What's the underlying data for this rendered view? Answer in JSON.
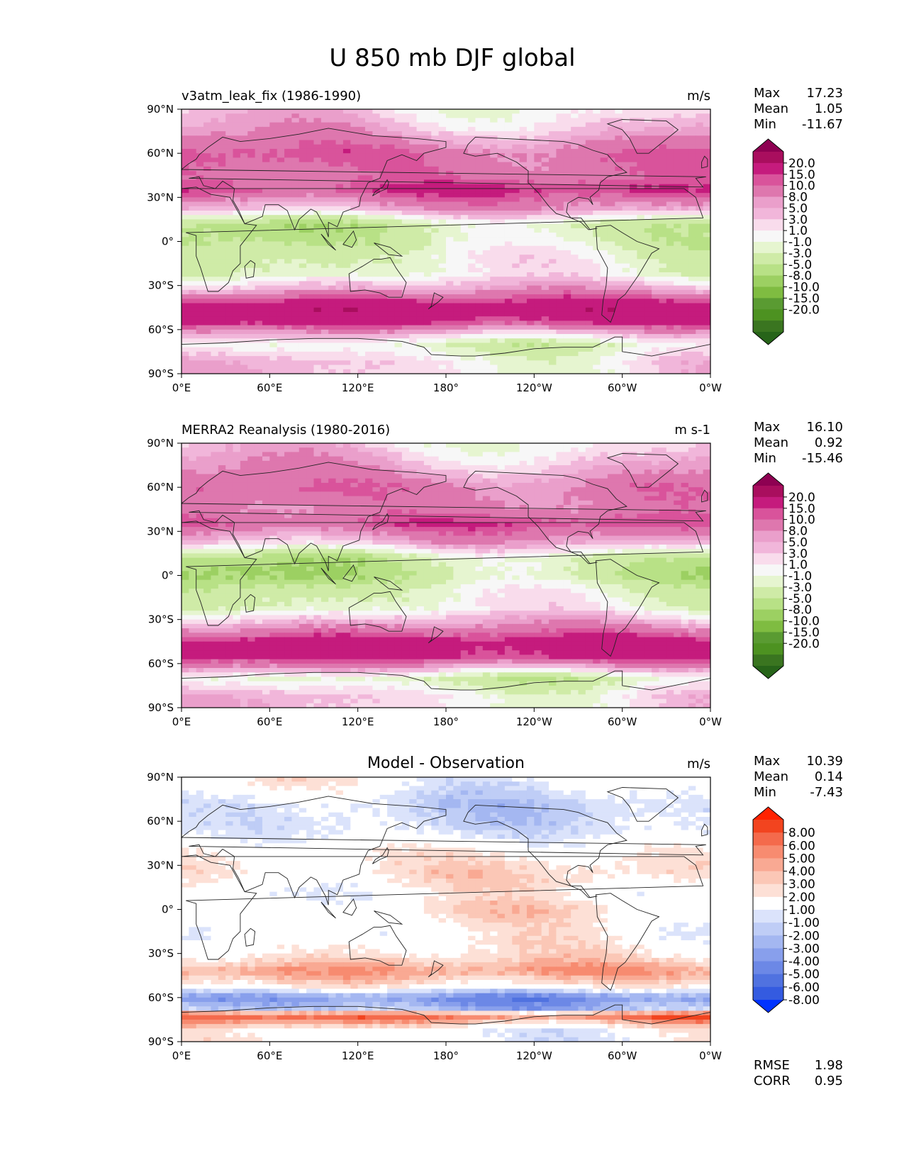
{
  "figure": {
    "title": "U 850 mb DJF global"
  },
  "chart_data": [
    {
      "type": "heatmap",
      "title": "v3atm_leak_fix (1986-1990)",
      "units": "m/s",
      "stats": [
        {
          "label": "Max",
          "value": "17.23"
        },
        {
          "label": "Mean",
          "value": "1.05"
        },
        {
          "label": "Min",
          "value": "-11.67"
        }
      ],
      "xticks": [
        "0°E",
        "60°E",
        "120°E",
        "180°",
        "120°W",
        "60°W",
        "0°W"
      ],
      "yticks": [
        "90°N",
        "60°N",
        "30°N",
        "0°",
        "30°S",
        "60°S",
        "90°S"
      ],
      "xlim": [
        0,
        360
      ],
      "ylim": [
        -90,
        90
      ],
      "colorbar": {
        "labels": [
          "20.0",
          "15.0",
          "10.0",
          "8.0",
          "5.0",
          "3.0",
          "1.0",
          "-1.0",
          "-3.0",
          "-5.0",
          "-8.0",
          "-10.0",
          "-15.0",
          "-20.0"
        ],
        "colors": [
          "#8e0152",
          "#a90e5e",
          "#c51b7d",
          "#d9539b",
          "#de77ae",
          "#ea9fcb",
          "#f1b6da",
          "#f9dcec",
          "#f7f7f7",
          "#e6f5d0",
          "#cfeba7",
          "#b8e186",
          "#9cd062",
          "#7fbc41",
          "#5a9b32",
          "#4d9221",
          "#3a7520",
          "#276419"
        ]
      },
      "bands": [
        {
          "lat": 88,
          "value": 0
        },
        {
          "lat": 75,
          "value": 3
        },
        {
          "lat": 60,
          "value": 8
        },
        {
          "lat": 45,
          "value": 7
        },
        {
          "lat": 35,
          "value": 10
        },
        {
          "lat": 22,
          "value": 3
        },
        {
          "lat": 12,
          "value": -7
        },
        {
          "lat": 0,
          "value": -6
        },
        {
          "lat": -10,
          "value": -4
        },
        {
          "lat": -22,
          "value": -3
        },
        {
          "lat": -32,
          "value": 3
        },
        {
          "lat": -45,
          "value": 14
        },
        {
          "lat": -55,
          "value": 11
        },
        {
          "lat": -63,
          "value": 2
        },
        {
          "lat": -70,
          "value": -4
        },
        {
          "lat": -82,
          "value": 0
        }
      ]
    },
    {
      "type": "heatmap",
      "title": "MERRA2 Reanalysis (1980-2016)",
      "units": "m s-1",
      "stats": [
        {
          "label": "Max",
          "value": "16.10"
        },
        {
          "label": "Mean",
          "value": "0.92"
        },
        {
          "label": "Min",
          "value": "-15.46"
        }
      ],
      "xticks": [
        "0°E",
        "60°E",
        "120°E",
        "180°",
        "120°W",
        "60°W",
        "0°W"
      ],
      "yticks": [
        "90°N",
        "60°N",
        "30°N",
        "0°",
        "30°S",
        "60°S",
        "90°S"
      ],
      "xlim": [
        0,
        360
      ],
      "ylim": [
        -90,
        90
      ],
      "colorbar": {
        "labels": [
          "20.0",
          "15.0",
          "10.0",
          "8.0",
          "5.0",
          "3.0",
          "1.0",
          "-1.0",
          "-3.0",
          "-5.0",
          "-8.0",
          "-10.0",
          "-15.0",
          "-20.0"
        ],
        "colors": [
          "#8e0152",
          "#a90e5e",
          "#c51b7d",
          "#d9539b",
          "#de77ae",
          "#ea9fcb",
          "#f1b6da",
          "#f9dcec",
          "#f7f7f7",
          "#e6f5d0",
          "#cfeba7",
          "#b8e186",
          "#9cd062",
          "#7fbc41",
          "#5a9b32",
          "#4d9221",
          "#3a7520",
          "#276419"
        ]
      },
      "bands": [
        {
          "lat": 88,
          "value": 0
        },
        {
          "lat": 75,
          "value": 3
        },
        {
          "lat": 60,
          "value": 7
        },
        {
          "lat": 45,
          "value": 6
        },
        {
          "lat": 35,
          "value": 9
        },
        {
          "lat": 22,
          "value": 2
        },
        {
          "lat": 12,
          "value": -7
        },
        {
          "lat": 0,
          "value": -8
        },
        {
          "lat": -10,
          "value": -5
        },
        {
          "lat": -22,
          "value": -3
        },
        {
          "lat": -32,
          "value": 3
        },
        {
          "lat": -45,
          "value": 12
        },
        {
          "lat": -55,
          "value": 12
        },
        {
          "lat": -63,
          "value": 3
        },
        {
          "lat": -70,
          "value": -5
        },
        {
          "lat": -82,
          "value": 0
        }
      ]
    },
    {
      "type": "heatmap",
      "title": "Model - Observation",
      "units": "m/s",
      "stats": [
        {
          "label": "Max",
          "value": "10.39"
        },
        {
          "label": "Mean",
          "value": "0.14"
        },
        {
          "label": "Min",
          "value": "-7.43"
        }
      ],
      "extra_stats": [
        {
          "label": "RMSE",
          "value": "1.98"
        },
        {
          "label": "CORR",
          "value": "0.95"
        }
      ],
      "xticks": [
        "0°E",
        "60°E",
        "120°E",
        "180°",
        "120°W",
        "60°W",
        "0°W"
      ],
      "yticks": [
        "90°N",
        "60°N",
        "30°N",
        "0°",
        "30°S",
        "60°S",
        "90°S"
      ],
      "xlim": [
        0,
        360
      ],
      "ylim": [
        -90,
        90
      ],
      "colorbar": {
        "labels": [
          "8.00",
          "6.00",
          "5.00",
          "4.00",
          "3.00",
          "2.00",
          "1.00",
          "-1.00",
          "-2.00",
          "-3.00",
          "-4.00",
          "-5.00",
          "-6.00",
          "-8.00"
        ],
        "colors": [
          "#ff2200",
          "#f2441f",
          "#f46a4c",
          "#f78b70",
          "#f9a993",
          "#fbc7b6",
          "#fde0d6",
          "#ffffff",
          "#dbe3fb",
          "#bfcdf6",
          "#a4b7f1",
          "#889fec",
          "#6c88e6",
          "#5072e0",
          "#345be0",
          "#0033ff"
        ]
      },
      "bands": [
        {
          "lat": 88,
          "value": 0
        },
        {
          "lat": 70,
          "value": -2
        },
        {
          "lat": 55,
          "value": -1.5
        },
        {
          "lat": 40,
          "value": 0.5
        },
        {
          "lat": 25,
          "value": 1.5
        },
        {
          "lat": 10,
          "value": 0
        },
        {
          "lat": 0,
          "value": 1
        },
        {
          "lat": -15,
          "value": 0
        },
        {
          "lat": -30,
          "value": 1
        },
        {
          "lat": -42,
          "value": 4
        },
        {
          "lat": -52,
          "value": 1
        },
        {
          "lat": -60,
          "value": -5
        },
        {
          "lat": -68,
          "value": -3
        },
        {
          "lat": -72,
          "value": 6
        },
        {
          "lat": -82,
          "value": 0
        }
      ]
    }
  ]
}
